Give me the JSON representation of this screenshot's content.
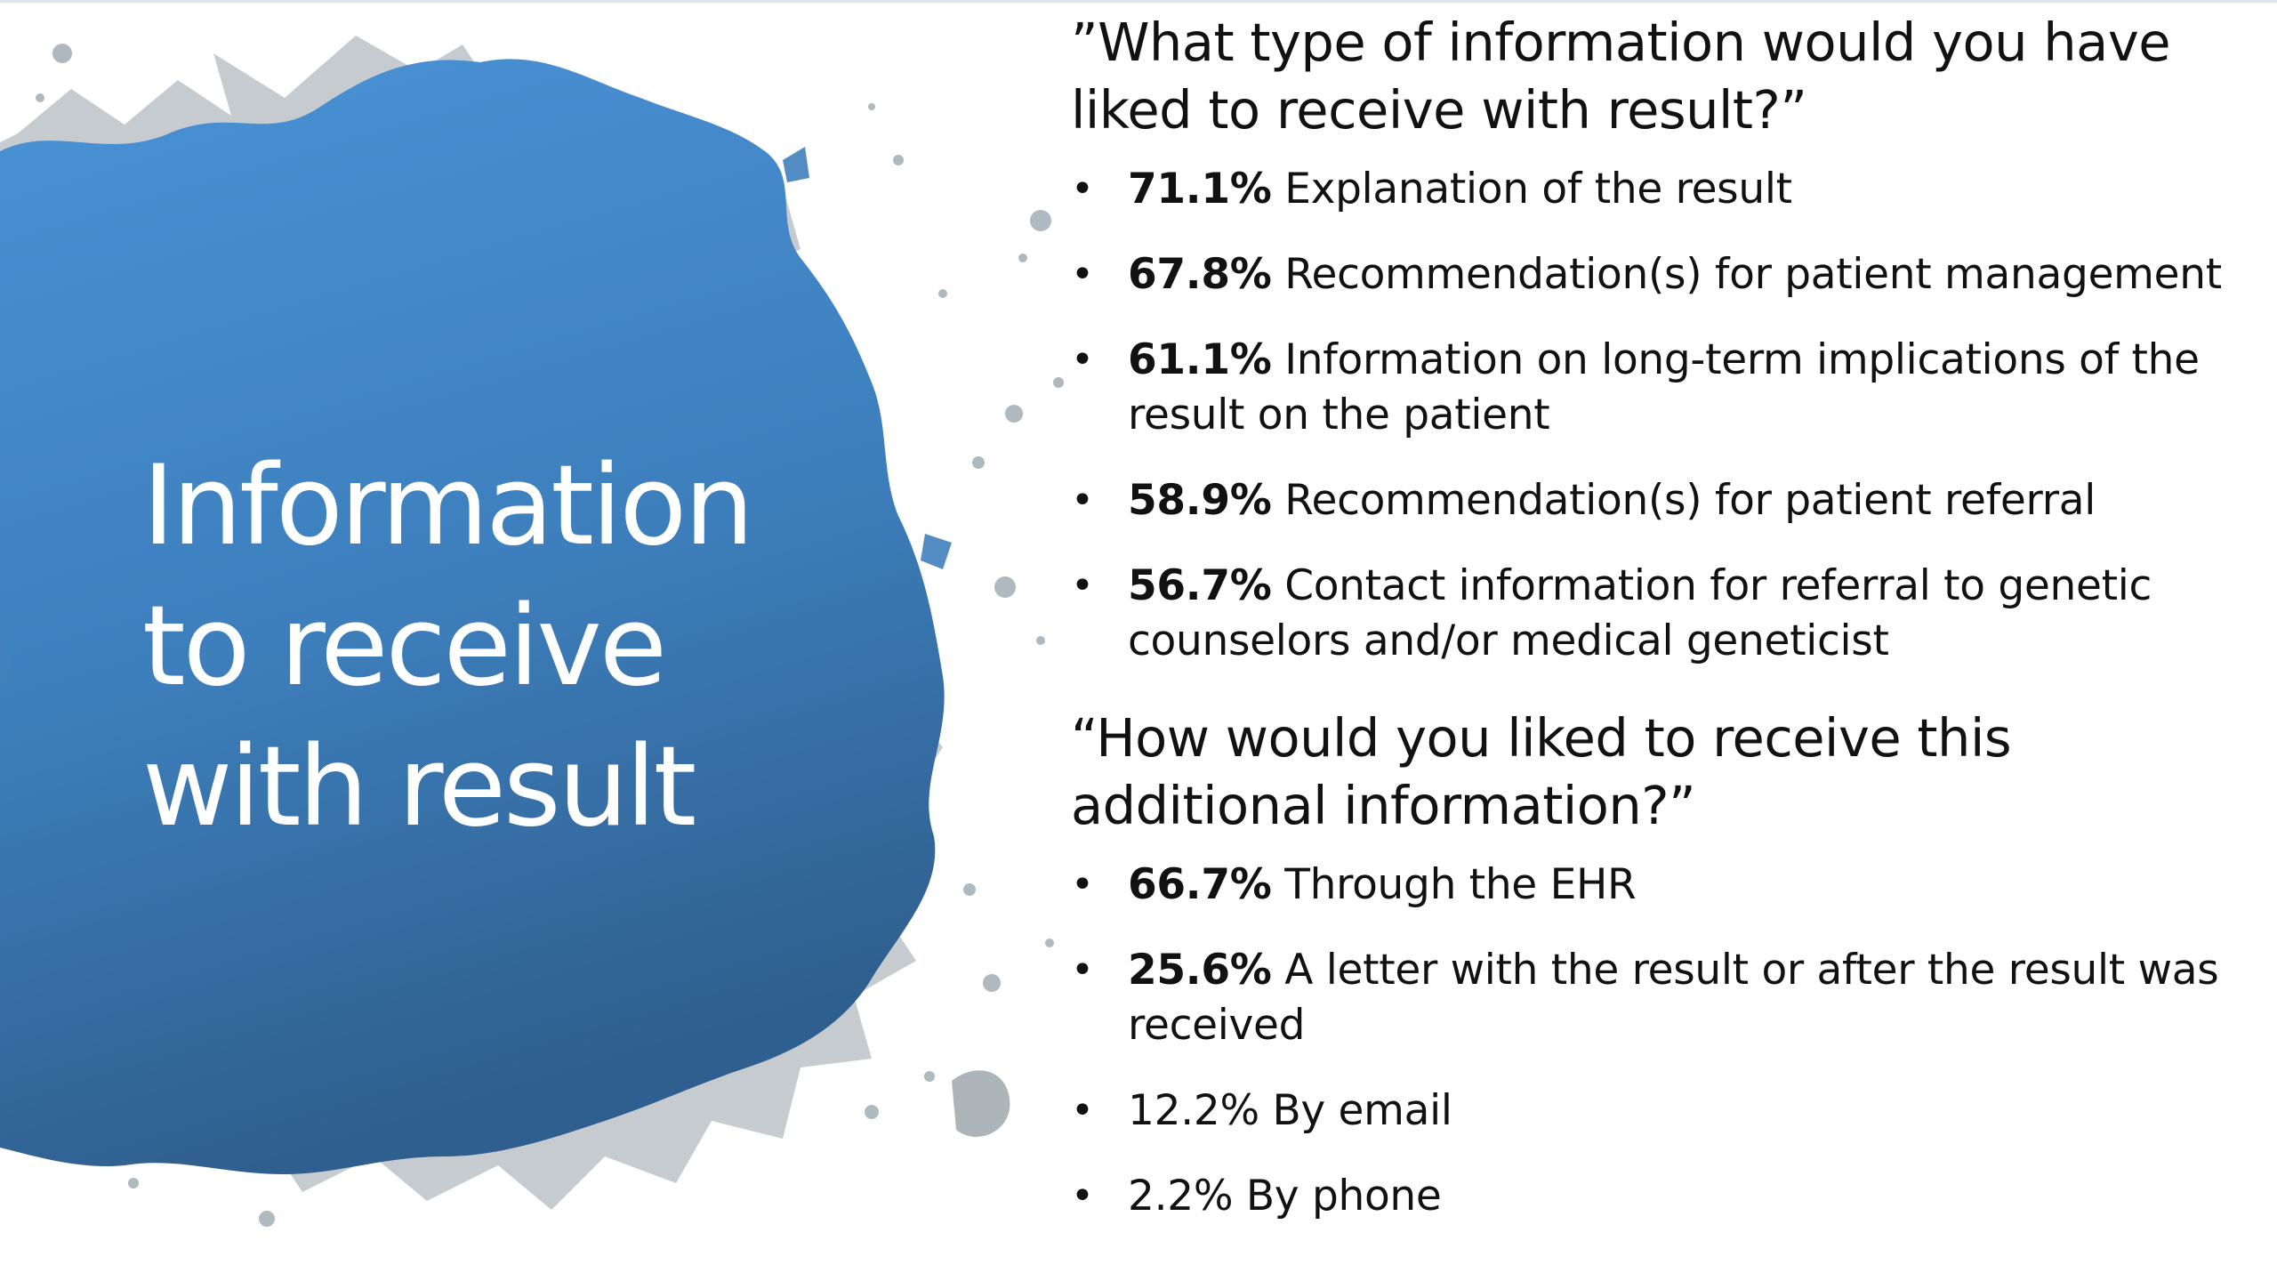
{
  "slide": {
    "title_lines": [
      "Information",
      "to receive",
      "with result"
    ],
    "colors": {
      "splash_light": "#4a93d6",
      "splash_dark": "#2f5f8e",
      "title_text": "#ffffff",
      "body_text": "#111111"
    }
  },
  "sections": [
    {
      "question": "”What type of information would you have liked to receive with result?”",
      "items": [
        {
          "bullet": "•",
          "pct": "71.1%",
          "text": " Explanation of the result",
          "bold": true
        },
        {
          "bullet": "•",
          "pct": "67.8%",
          "text": " Recommendation(s) for patient management",
          "bold": true
        },
        {
          "bullet": "•",
          "pct": "61.1%",
          "text": " Information on long-term implications of the result on the patient",
          "bold": true
        },
        {
          "bullet": "•",
          "pct": "58.9%",
          "text": " Recommendation(s) for patient referral",
          "bold": true
        },
        {
          "bullet": "•",
          "pct": "56.7%",
          "text": " Contact information for referral to genetic counselors and/or medical geneticist",
          "bold": true
        }
      ]
    },
    {
      "question": "“How would you liked to receive this additional information?”",
      "items": [
        {
          "bullet": "•",
          "pct": "66.7%",
          "text": " Through the EHR",
          "bold": true
        },
        {
          "bullet": "•",
          "pct": "25.6%",
          "text": " A letter with the result or after the result was received",
          "bold": true
        },
        {
          "bullet": "•",
          "pct": "12.2%",
          "text": " By email",
          "bold": false
        },
        {
          "bullet": "•",
          "pct": "2.2%",
          "text": " By phone",
          "bold": false
        }
      ]
    }
  ]
}
